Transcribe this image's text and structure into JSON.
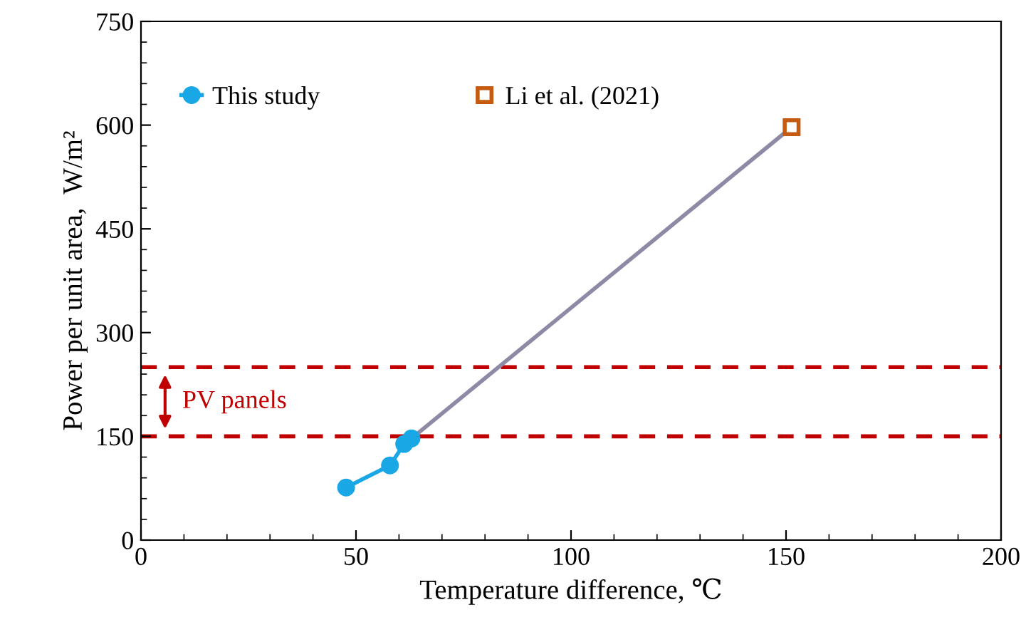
{
  "chart_data": {
    "type": "scatter",
    "xlabel": "Temperature difference, ℃",
    "ylabel": "Power per unit area,  W/m²",
    "xlim": [
      0,
      200
    ],
    "xticks": [
      0,
      50,
      100,
      150,
      200
    ],
    "ylim": [
      0,
      750
    ],
    "yticks": [
      0,
      150,
      300,
      450,
      600,
      750
    ],
    "grid": false,
    "legend": "top left",
    "series": [
      {
        "name": "This study",
        "type": "line",
        "marker": "circle",
        "color": "#1aa7e6",
        "x": [
          47.7,
          57.9,
          61.2,
          62.9
        ],
        "values": [
          76,
          108,
          139,
          147
        ]
      },
      {
        "type": "line",
        "marker": "none",
        "color": "#8d8aa6",
        "x": [
          62.9,
          151.3
        ],
        "values": [
          147,
          597
        ]
      },
      {
        "name": "Li et al. (2021)",
        "marker": "square",
        "color": "#c55a11",
        "x": [
          151.3
        ],
        "values": [
          597
        ]
      }
    ],
    "ref_lines": [
      {
        "axis": "y",
        "value": 150,
        "color": "#c00000",
        "line_style": "dashed"
      },
      {
        "axis": "y",
        "value": 250,
        "color": "#c00000",
        "line_style": "dashed"
      }
    ],
    "annotations": [
      "PV panels"
    ]
  }
}
